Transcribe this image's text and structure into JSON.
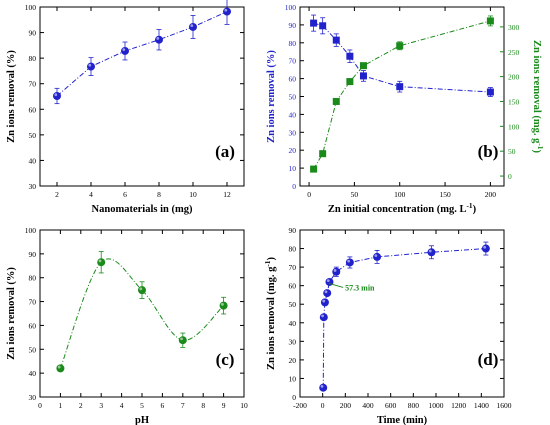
{
  "chart_data": [
    {
      "panel": "a",
      "type": "scatter",
      "panel_label": "(a)",
      "xlabel": "Nanomaterials in (mg)",
      "ylabel": "Zn ions removal (%)",
      "xlim": [
        1,
        13
      ],
      "ylim": [
        30,
        100
      ],
      "xticks": [
        2,
        4,
        6,
        8,
        10,
        12
      ],
      "yticks": [
        30,
        40,
        50,
        60,
        70,
        80,
        90,
        100
      ],
      "series": [
        {
          "x": [
            2,
            4,
            6,
            8,
            10,
            12
          ],
          "y": [
            65.2,
            76.7,
            82.8,
            87.2,
            92.2,
            98.2
          ],
          "err": [
            3,
            3.5,
            3.5,
            4,
            4.5,
            5
          ],
          "color": "#2222cc",
          "marker": "circle",
          "line": "dash-dot"
        }
      ]
    },
    {
      "panel": "b",
      "type": "scatter",
      "panel_label": "(b)",
      "xlabel": "Zn initial concentration (mg. L",
      "xlabel_sup": "-1",
      "xlabel_end": ")",
      "ylabel": "Zn ions removal (%)",
      "y2label": "Zn ions removal (mg. g",
      "y2label_sup": "-1",
      "y2label_end": ")",
      "xlim": [
        -10,
        215
      ],
      "ylim": [
        0,
        100
      ],
      "y2lim": [
        -20,
        340
      ],
      "xticks": [
        0,
        50,
        100,
        150,
        200
      ],
      "yticks": [
        0,
        10,
        20,
        30,
        40,
        50,
        60,
        70,
        80,
        90,
        100
      ],
      "y2ticks": [
        0,
        50,
        100,
        150,
        200,
        250,
        300
      ],
      "series": [
        {
          "axis": "left",
          "x": [
            5,
            15,
            30,
            45,
            60,
            100,
            200
          ],
          "y": [
            91,
            89.5,
            81.5,
            72.5,
            61.5,
            55.5,
            52.5
          ],
          "err": [
            4.5,
            4.5,
            3.5,
            3.5,
            3,
            3,
            2.5
          ],
          "color": "#2222cc",
          "marker": "square",
          "line": "dash-dot"
        },
        {
          "axis": "right",
          "x": [
            5,
            15,
            30,
            45,
            60,
            100,
            200
          ],
          "y": [
            14,
            45,
            150,
            190,
            222,
            262,
            312
          ],
          "err": [
            0,
            0,
            0,
            0,
            0,
            8,
            10
          ],
          "color": "#1a8a1a",
          "marker": "square",
          "line": "dash-dot"
        }
      ]
    },
    {
      "panel": "c",
      "type": "scatter",
      "panel_label": "(c)",
      "xlabel": "pH",
      "ylabel": "Zn ions removal (%)",
      "xlim": [
        0,
        10
      ],
      "ylim": [
        30,
        100
      ],
      "xticks": [
        0,
        1,
        2,
        3,
        4,
        5,
        6,
        7,
        8,
        9,
        10
      ],
      "yticks": [
        30,
        40,
        50,
        60,
        70,
        80,
        90,
        100
      ],
      "series": [
        {
          "x": [
            1,
            3,
            5,
            7,
            9
          ],
          "y": [
            42,
            86.5,
            74.8,
            53.8,
            68.3
          ],
          "err": [
            0,
            4.5,
            3.5,
            3,
            3.5
          ],
          "color": "#1a8a1a",
          "marker": "circle",
          "line": "dash-dot-smooth"
        }
      ]
    },
    {
      "panel": "d",
      "type": "scatter",
      "panel_label": "(d)",
      "xlabel": "Time (min)",
      "ylabel": "Zn ions removal (mg. g",
      "ylabel_sup": "-1",
      "ylabel_end": ")",
      "annotation": "57.3 min",
      "annotation_x": 57.3,
      "xlim": [
        -200,
        1600
      ],
      "ylim": [
        0,
        90
      ],
      "xticks": [
        -200,
        0,
        200,
        400,
        600,
        800,
        1000,
        1200,
        1400,
        1600
      ],
      "yticks": [
        0,
        10,
        20,
        30,
        40,
        50,
        60,
        70,
        80,
        90
      ],
      "series": [
        {
          "x": [
            5,
            10,
            20,
            40,
            60,
            120,
            240,
            480,
            960,
            1440
          ],
          "y": [
            5,
            43,
            51,
            56,
            62,
            67.5,
            72.5,
            75.5,
            78,
            80
          ],
          "err": [
            0,
            0,
            0,
            0,
            0,
            2.5,
            3,
            3.5,
            3.5,
            3.5
          ],
          "color": "#2222cc",
          "marker": "circle",
          "line": "dash-dot"
        }
      ]
    }
  ]
}
